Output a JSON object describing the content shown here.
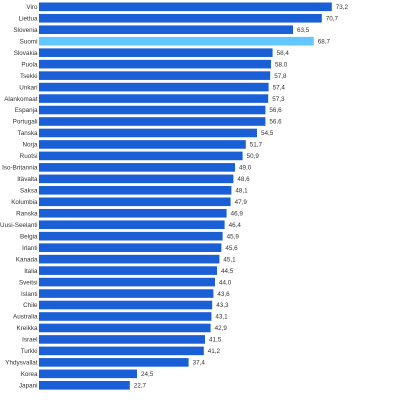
{
  "chart_data": {
    "type": "bar",
    "orientation": "horizontal",
    "title": "",
    "xlabel": "",
    "ylabel": "",
    "xlim": [
      0,
      80
    ],
    "grid": false,
    "legend": "none",
    "colors": {
      "bar": "#1a5fd6",
      "highlight": "#62c6ff"
    },
    "highlight_category": "Suomi",
    "categories": [
      "Viro",
      "Liettua",
      "Slovenia",
      "Suomi",
      "Slovakia",
      "Puola",
      "Tsekki",
      "Unkari",
      "Alankomaat",
      "Espanja",
      "Portugali",
      "Tanska",
      "Norja",
      "Ruotsi",
      "Iso-Britannia",
      "Itävalta",
      "Saksa",
      "Kolumbia",
      "Ranska",
      "Uusi-Seelanti",
      "Belgia",
      "Irlanti",
      "Kanada",
      "Italia",
      "Sveitsi",
      "Islanti",
      "Chile",
      "Australia",
      "Kreikka",
      "Israel",
      "Turkki",
      "Yhdysvallat",
      "Korea",
      "Japani"
    ],
    "values": [
      73.2,
      70.7,
      63.5,
      68.7,
      58.4,
      58.0,
      57.8,
      57.4,
      57.3,
      56.6,
      56.6,
      54.5,
      51.7,
      50.9,
      49.0,
      48.6,
      48.1,
      47.9,
      46.9,
      46.4,
      45.9,
      45.6,
      45.1,
      44.5,
      44.0,
      43.6,
      43.3,
      43.1,
      42.9,
      41.5,
      41.2,
      37.4,
      24.5,
      22.7
    ],
    "value_labels": [
      "73,2",
      "70,7",
      "63,5",
      "68,7",
      "58,4",
      "58,0",
      "57,8",
      "57,4",
      "57,3",
      "56,6",
      "56,6",
      "54,5",
      "51,7",
      "50,9",
      "49,0",
      "48,6",
      "48,1",
      "47,9",
      "46,9",
      "46,4",
      "45,9",
      "45,6",
      "45,1",
      "44,5",
      "44,0",
      "43,6",
      "43,3",
      "43,1",
      "42,9",
      "41,5",
      "41,2",
      "37,4",
      "24,5",
      "22,7"
    ]
  }
}
